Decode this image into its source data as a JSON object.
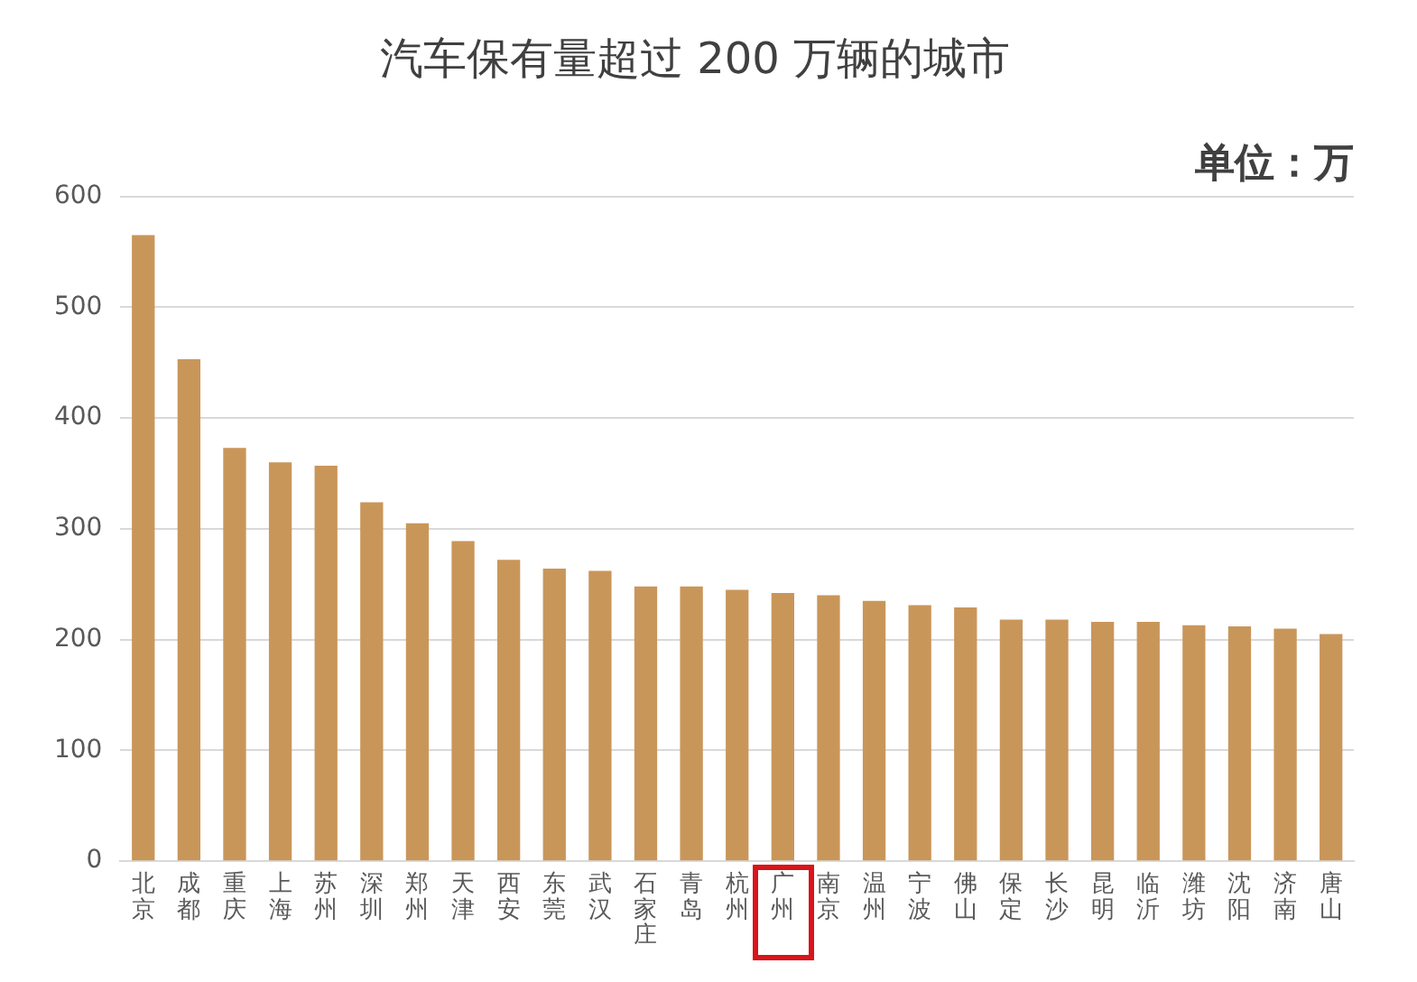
{
  "chart_data": {
    "type": "bar",
    "title": "汽车保有量超过 200 万辆的城市",
    "annotations": [
      "单位：万"
    ],
    "categories": [
      "北京",
      "成都",
      "重庆",
      "上海",
      "苏州",
      "深圳",
      "郑州",
      "天津",
      "西安",
      "东莞",
      "武汉",
      "石家庄",
      "青岛",
      "杭州",
      "广州",
      "南京",
      "温州",
      "宁波",
      "佛山",
      "保定",
      "长沙",
      "昆明",
      "临沂",
      "潍坊",
      "沈阳",
      "济南",
      "唐山"
    ],
    "values": [
      565,
      453,
      373,
      360,
      357,
      324,
      305,
      289,
      272,
      264,
      262,
      248,
      248,
      245,
      242,
      240,
      235,
      231,
      229,
      218,
      218,
      216,
      216,
      213,
      212,
      210,
      205
    ],
    "color": "#c9965a",
    "ylim": [
      0,
      600
    ],
    "yticks": [
      0,
      100,
      200,
      300,
      400,
      500,
      600
    ],
    "grid": "y",
    "legend": false
  }
}
